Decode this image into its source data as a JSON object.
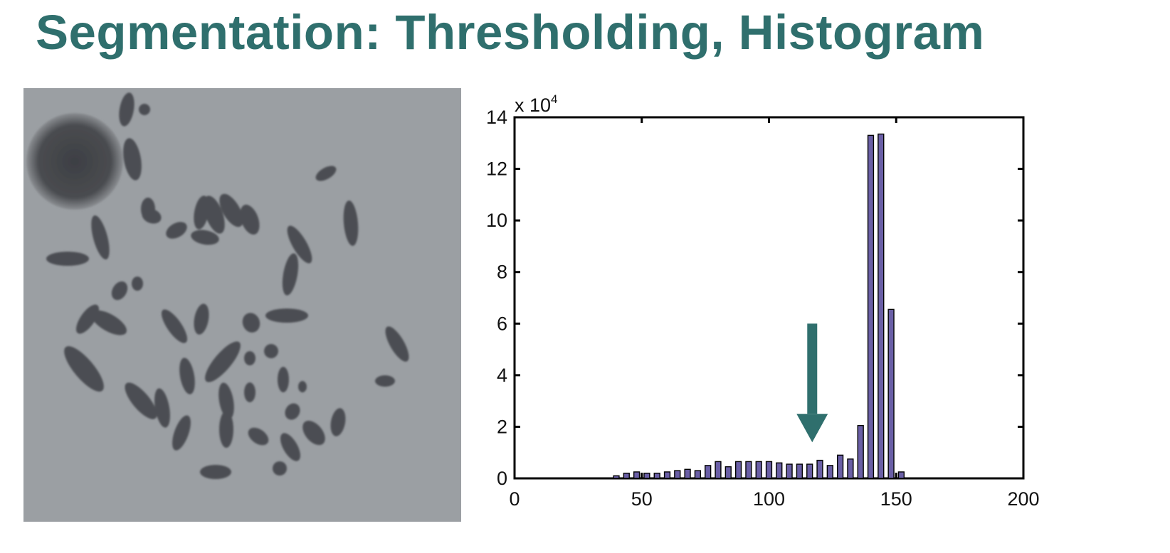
{
  "slide": {
    "title": "Segmentation: Thresholding, Histogram"
  },
  "image": {
    "icon": "chromosome-spread-micrograph",
    "background_color": "#9b9fa3"
  },
  "colors": {
    "title": "#2f6f6d",
    "bar_fill": "#6a5fa6",
    "arrow": "#2f6f6d"
  },
  "chart_data": {
    "type": "bar",
    "title": "",
    "xlabel": "",
    "ylabel": "",
    "y_multiplier_label": "x 10",
    "y_multiplier_exponent": "4",
    "xlim": [
      0,
      200
    ],
    "ylim": [
      0,
      14
    ],
    "x_ticks": [
      0,
      50,
      100,
      150,
      200
    ],
    "y_ticks": [
      0,
      2,
      4,
      6,
      8,
      10,
      12,
      14
    ],
    "x": [
      40,
      44,
      48,
      52,
      56,
      60,
      64,
      68,
      72,
      76,
      80,
      84,
      88,
      92,
      96,
      100,
      104,
      108,
      112,
      116,
      120,
      124,
      128,
      132,
      136,
      140,
      144,
      148,
      152
    ],
    "values": [
      0.1,
      0.2,
      0.25,
      0.2,
      0.2,
      0.25,
      0.3,
      0.35,
      0.3,
      0.5,
      0.65,
      0.45,
      0.65,
      0.65,
      0.65,
      0.65,
      0.6,
      0.55,
      0.55,
      0.55,
      0.7,
      0.5,
      0.9,
      0.75,
      2.05,
      13.3,
      13.35,
      6.55,
      0.25
    ],
    "grid": false,
    "annotation": {
      "type": "arrow",
      "x": 117,
      "from_y": 6.0,
      "to_y": 1.4
    }
  }
}
